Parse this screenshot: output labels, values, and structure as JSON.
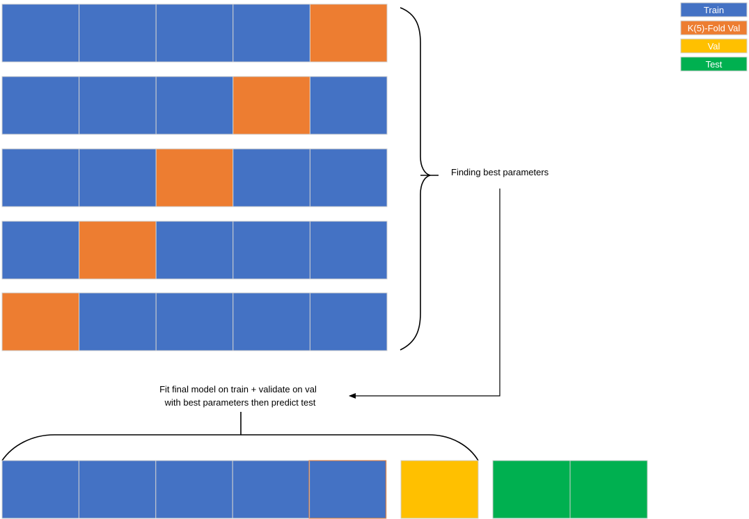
{
  "colors": {
    "train": "#4472C4",
    "kfold_val": "#ED7D31",
    "val": "#FFC000",
    "test": "#00B050",
    "cell_border": "#D0D0D0",
    "line": "#000000"
  },
  "legend": [
    {
      "label": "Train",
      "color_key": "train"
    },
    {
      "label": "K(5)-Fold Val",
      "color_key": "kfold_val"
    },
    {
      "label": "Val",
      "color_key": "val"
    },
    {
      "label": "Test",
      "color_key": "test"
    }
  ],
  "folds": [
    [
      "train",
      "train",
      "train",
      "train",
      "kfold_val"
    ],
    [
      "train",
      "train",
      "train",
      "kfold_val",
      "train"
    ],
    [
      "train",
      "train",
      "kfold_val",
      "train",
      "train"
    ],
    [
      "train",
      "kfold_val",
      "train",
      "train",
      "train"
    ],
    [
      "kfold_val",
      "train",
      "train",
      "train",
      "train"
    ]
  ],
  "final": {
    "train_cells": [
      "train",
      "train",
      "train",
      "train",
      "train"
    ],
    "val_cells": [
      "val"
    ],
    "test_cells": [
      "test",
      "test"
    ]
  },
  "annotations": {
    "finding_best": "Finding best parameters",
    "fit_final_line1": "Fit final model on train + validate on val",
    "fit_final_line2": "with best parameters then predict test"
  }
}
